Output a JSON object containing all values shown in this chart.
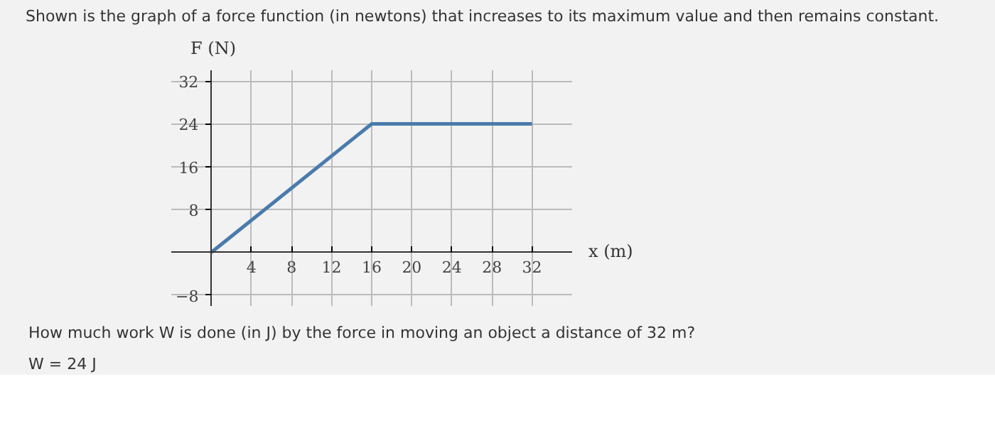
{
  "chart_data": {
    "type": "line",
    "title": "Shown is the graph of a force function (in newtons) that increases to its maximum value and then remains constant.",
    "xlabel": "x (m)",
    "ylabel": "F (N)",
    "x": [
      0,
      16,
      32
    ],
    "series": [
      {
        "color": "#4a7bab",
        "values": [
          0,
          24,
          24
        ]
      }
    ],
    "xlim": [
      -4,
      36
    ],
    "ylim": [
      -10,
      34
    ],
    "xticks": [
      4,
      8,
      12,
      16,
      20,
      24,
      28,
      32
    ],
    "yticks": [
      -8,
      8,
      16,
      24,
      32
    ],
    "grid": true,
    "marker": "none",
    "line_style": "solid",
    "annotations": [
      "How much work W is done (in J) by the force in moving an object a distance of 32 m?",
      "W = 24 J"
    ]
  }
}
